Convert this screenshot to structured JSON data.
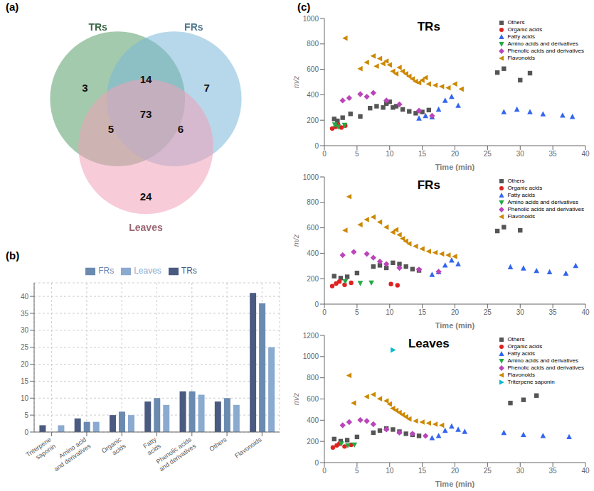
{
  "chart_data": [
    {
      "type": "venn",
      "title": "(a)",
      "series": [
        {
          "name": "TRs",
          "color": "#5a9f6a"
        },
        {
          "name": "FRs",
          "color": "#7ab8d8"
        },
        {
          "name": "Leaves",
          "color": "#f0a0b8"
        }
      ],
      "regions": [
        {
          "sets": [
            "TRs"
          ],
          "value": 3
        },
        {
          "sets": [
            "FRs"
          ],
          "value": 7
        },
        {
          "sets": [
            "Leaves"
          ],
          "value": 24
        },
        {
          "sets": [
            "TRs",
            "FRs"
          ],
          "value": 14
        },
        {
          "sets": [
            "TRs",
            "Leaves"
          ],
          "value": 5
        },
        {
          "sets": [
            "FRs",
            "Leaves"
          ],
          "value": 6
        },
        {
          "sets": [
            "TRs",
            "FRs",
            "Leaves"
          ],
          "value": 73
        }
      ]
    },
    {
      "type": "bar",
      "title": "(b)",
      "categories": [
        "Triterpene\nsaponin",
        "Amino acid\nand derivatives",
        "Organic\nacids",
        "Fatty\nacids",
        "Phenolic acids\nand derivatives",
        "Others",
        "Flavonoids"
      ],
      "series": [
        {
          "name": "TRs",
          "color": "#4a5a80",
          "values": [
            2,
            4,
            5,
            9,
            12,
            9,
            41
          ]
        },
        {
          "name": "FRs",
          "color": "#6a8ab0",
          "values": [
            0,
            3,
            6,
            10,
            12,
            10,
            38
          ]
        },
        {
          "name": "Leaves",
          "color": "#8aaad0",
          "values": [
            2,
            3,
            5,
            8,
            11,
            8,
            25
          ]
        }
      ],
      "ylim": [
        0,
        44
      ],
      "yticks": [
        0,
        5,
        10,
        15,
        20,
        25,
        30,
        35,
        40
      ],
      "grid": true,
      "legend": "top"
    },
    {
      "type": "scatter",
      "title": "TRs",
      "annotations": [
        "(c)"
      ],
      "x_label": "Time (min)",
      "y_label": "m/z",
      "xlim": [
        0,
        40
      ],
      "xticks": [
        0,
        5,
        10,
        15,
        20,
        25,
        30,
        35,
        40
      ],
      "ylim": [
        0,
        1000
      ],
      "yticks": [
        0,
        200,
        400,
        600,
        800,
        1000
      ],
      "grid": false,
      "legend": "upper right",
      "series": [
        {
          "name": "Others",
          "color": "#555555",
          "marker": "square",
          "x": [
            1.5,
            2.0,
            2.8,
            4.0,
            5.5,
            7.0,
            8.0,
            9.0,
            9.5,
            10.0,
            10.5,
            11.0,
            12.0,
            13.0,
            14.0,
            15.0,
            16.0,
            26.5,
            27.5,
            30.0,
            31.5
          ],
          "values": [
            210,
            195,
            220,
            250,
            230,
            295,
            310,
            300,
            330,
            345,
            300,
            310,
            285,
            270,
            255,
            265,
            280,
            575,
            605,
            515,
            570
          ]
        },
        {
          "name": "Organic acids",
          "color": "#dd2222",
          "marker": "circle",
          "x": [
            1.2,
            1.7,
            2.1,
            2.6,
            3.2
          ],
          "values": [
            135,
            148,
            165,
            143,
            158
          ]
        },
        {
          "name": "Fatty acids",
          "color": "#3366ee",
          "marker": "triangle-up",
          "x": [
            14.5,
            15.5,
            16.5,
            17.5,
            18.5,
            19.5,
            20.5,
            27.5,
            29.5,
            31.5,
            33.5,
            36.5,
            38.0
          ],
          "values": [
            215,
            235,
            225,
            285,
            355,
            385,
            315,
            265,
            285,
            265,
            248,
            238,
            228
          ]
        },
        {
          "name": "Amino acids and derivatives",
          "color": "#22aa44",
          "marker": "triangle-down",
          "x": [
            1.6,
            2.1,
            3.1
          ],
          "values": [
            165,
            148,
            162
          ]
        },
        {
          "name": "Phenolic acids and derivatives",
          "color": "#bb44bb",
          "marker": "diamond",
          "x": [
            2.8,
            3.8,
            5.5,
            6.5,
            7.5,
            9.5,
            11.5,
            14.5,
            16.5
          ],
          "values": [
            355,
            375,
            405,
            385,
            415,
            355,
            325,
            275,
            235
          ]
        },
        {
          "name": "Flavonoids",
          "color": "#cc8800",
          "marker": "triangle-left",
          "x": [
            3.2,
            5.5,
            6.5,
            7.5,
            8.0,
            8.5,
            9.0,
            9.5,
            10.0,
            10.5,
            11.0,
            11.5,
            12.0,
            12.5,
            13.0,
            13.5,
            14.0,
            14.5,
            15.0,
            15.5,
            16.0,
            17.0,
            18.0,
            19.0,
            20.0,
            21.0
          ],
          "values": [
            845,
            605,
            655,
            705,
            625,
            685,
            645,
            665,
            635,
            585,
            565,
            615,
            585,
            565,
            545,
            525,
            505,
            495,
            515,
            535,
            485,
            475,
            465,
            455,
            485,
            445
          ]
        }
      ]
    },
    {
      "type": "scatter",
      "title": "FRs",
      "x_label": "Time (min)",
      "y_label": "m/z",
      "xlim": [
        0,
        40
      ],
      "xticks": [
        0,
        5,
        10,
        15,
        20,
        25,
        30,
        35,
        40
      ],
      "ylim": [
        0,
        1000
      ],
      "yticks": [
        0,
        200,
        400,
        600,
        800,
        1000
      ],
      "grid": false,
      "legend": "upper right",
      "series": [
        {
          "name": "Others",
          "color": "#555555",
          "marker": "square",
          "x": [
            1.5,
            2.5,
            3.5,
            5.0,
            7.5,
            8.5,
            9.5,
            10.5,
            11.5,
            12.5,
            13.5,
            14.5,
            26.5,
            27.5,
            30.0
          ],
          "values": [
            220,
            205,
            215,
            245,
            295,
            305,
            285,
            325,
            315,
            295,
            275,
            265,
            575,
            605,
            580
          ]
        },
        {
          "name": "Organic acids",
          "color": "#dd2222",
          "marker": "circle",
          "x": [
            1.2,
            1.8,
            2.3,
            3.1,
            4.1,
            10.2,
            11.2
          ],
          "values": [
            142,
            162,
            178,
            152,
            168,
            158,
            148
          ]
        },
        {
          "name": "Fatty acids",
          "color": "#3366ee",
          "marker": "triangle-up",
          "x": [
            16.5,
            17.5,
            18.5,
            19.5,
            20.5,
            28.5,
            30.5,
            32.5,
            34.5,
            37.0,
            38.5
          ],
          "values": [
            232,
            252,
            305,
            345,
            315,
            292,
            282,
            262,
            252,
            242,
            302
          ]
        },
        {
          "name": "Amino acids and derivatives",
          "color": "#22aa44",
          "marker": "triangle-down",
          "x": [
            3.2,
            5.5,
            7.2
          ],
          "values": [
            178,
            165,
            168
          ]
        },
        {
          "name": "Phenolic acids and derivatives",
          "color": "#bb44bb",
          "marker": "diamond",
          "x": [
            2.8,
            4.5,
            6.5,
            7.5,
            8.5,
            9.5,
            11.5,
            14.5,
            17.5
          ],
          "values": [
            385,
            410,
            395,
            365,
            335,
            315,
            285,
            272,
            255
          ]
        },
        {
          "name": "Flavonoids",
          "color": "#cc8800",
          "marker": "triangle-left",
          "x": [
            3.8,
            5.5,
            6.5,
            7.5,
            8.5,
            9.5,
            10.5,
            11.0,
            11.5,
            12.0,
            12.5,
            13.0,
            14.0,
            15.0,
            16.0,
            17.0,
            18.0,
            19.0,
            20.0,
            3.2
          ],
          "values": [
            845,
            625,
            665,
            685,
            645,
            605,
            565,
            585,
            545,
            515,
            495,
            475,
            455,
            435,
            415,
            405,
            395,
            385,
            375,
            580
          ]
        }
      ]
    },
    {
      "type": "scatter",
      "title": "Leaves",
      "x_label": "Time (min)",
      "y_label": "m/z",
      "xlim": [
        0,
        40
      ],
      "xticks": [
        0,
        5,
        10,
        15,
        20,
        25,
        30,
        35,
        40
      ],
      "ylim": [
        0,
        1200
      ],
      "yticks": [
        0,
        200,
        400,
        600,
        800,
        1000,
        1200
      ],
      "grid": false,
      "legend": "upper right",
      "series": [
        {
          "name": "Others",
          "color": "#555555",
          "marker": "square",
          "x": [
            1.5,
            2.5,
            3.5,
            5.0,
            7.5,
            8.5,
            9.5,
            10.5,
            11.5,
            12.5,
            13.5,
            14.5,
            28.5,
            30.5,
            32.5
          ],
          "values": [
            222,
            202,
            212,
            242,
            282,
            302,
            322,
            312,
            292,
            272,
            262,
            252,
            562,
            592,
            632
          ]
        },
        {
          "name": "Organic acids",
          "color": "#dd2222",
          "marker": "circle",
          "x": [
            1.3,
            1.9,
            2.3,
            3.1,
            4.1
          ],
          "values": [
            142,
            162,
            178,
            152,
            168
          ]
        },
        {
          "name": "Fatty acids",
          "color": "#3366ee",
          "marker": "triangle-up",
          "x": [
            16.5,
            17.5,
            18.5,
            19.5,
            20.5,
            21.5,
            27.5,
            30.5,
            33.5,
            37.5
          ],
          "values": [
            232,
            252,
            302,
            342,
            312,
            292,
            282,
            262,
            252,
            242
          ]
        },
        {
          "name": "Amino acids and derivatives",
          "color": "#22aa44",
          "marker": "triangle-down",
          "x": [
            2.6,
            3.6,
            4.6
          ],
          "values": [
            178,
            162,
            168
          ]
        },
        {
          "name": "Phenolic acids and derivatives",
          "color": "#bb44bb",
          "marker": "diamond",
          "x": [
            2.8,
            3.8,
            5.5,
            6.5,
            7.5,
            9.5,
            11.5,
            13.5,
            15.5
          ],
          "values": [
            352,
            382,
            402,
            392,
            362,
            312,
            282,
            272,
            252
          ]
        },
        {
          "name": "Flavonoids",
          "color": "#cc8800",
          "marker": "triangle-left",
          "x": [
            4.5,
            6.5,
            7.5,
            8.5,
            9.5,
            10.0,
            10.5,
            11.0,
            11.5,
            12.0,
            12.5,
            13.0,
            14.0,
            15.0,
            16.0,
            17.0,
            18.0,
            3.8
          ],
          "values": [
            562,
            622,
            642,
            602,
            582,
            552,
            512,
            492,
            472,
            452,
            432,
            412,
            392,
            382,
            372,
            362,
            352,
            822
          ]
        },
        {
          "name": "Triterpene saponin",
          "color": "#00bbcc",
          "marker": "triangle-right",
          "x": [
            10.5
          ],
          "values": [
            1062
          ]
        }
      ]
    }
  ]
}
